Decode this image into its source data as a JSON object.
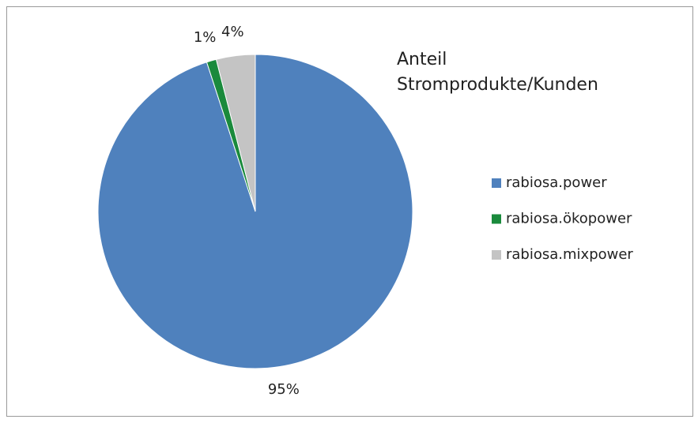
{
  "chart_data": {
    "type": "pie",
    "title": "Anteil Stromprodukte/Kunden",
    "categories": [
      "rabiosa.power",
      "rabiosa.ökopower",
      "rabiosa.mixpower"
    ],
    "values": [
      95,
      1,
      4
    ],
    "value_labels": [
      "95%",
      "1%",
      "4%"
    ],
    "colors": [
      "#4f81bd",
      "#1a8a3c",
      "#c4c4c4"
    ],
    "legend": "right"
  }
}
